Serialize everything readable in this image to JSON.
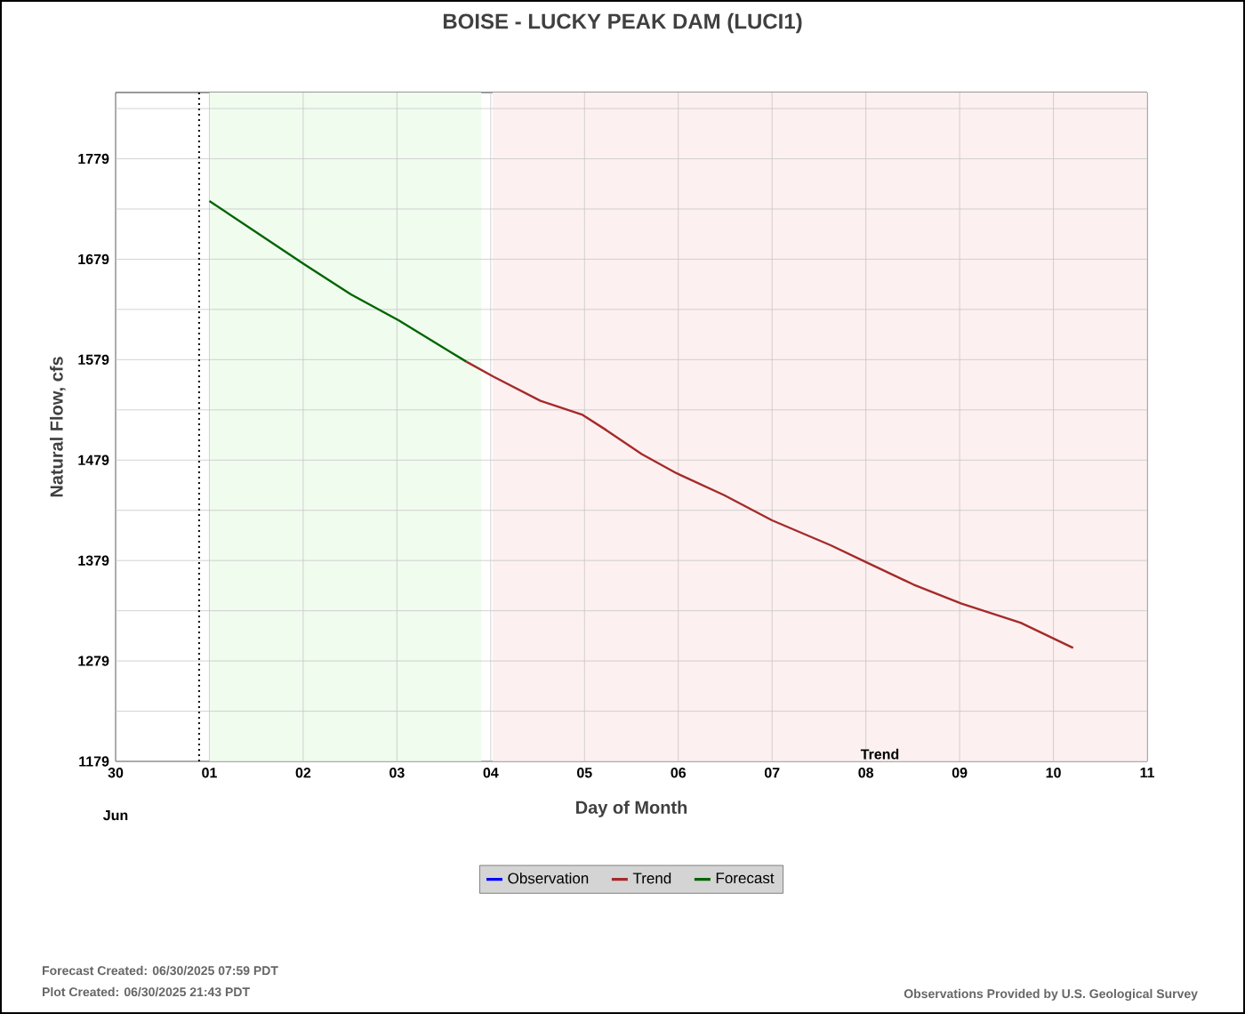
{
  "chart_data": {
    "type": "line",
    "title": "BOISE - LUCKY PEAK DAM  (LUCI1)",
    "xlabel": "Day of Month",
    "ylabel": "Natural Flow, cfs",
    "xlim": [
      "2025-06-30",
      "2025-07-11"
    ],
    "ylim": [
      1179,
      1845
    ],
    "xticks": [
      {
        "value": "2025-06-30",
        "label": "30"
      },
      {
        "value": "2025-07-01",
        "label": "01"
      },
      {
        "value": "2025-07-02",
        "label": "02"
      },
      {
        "value": "2025-07-03",
        "label": "03"
      },
      {
        "value": "2025-07-04",
        "label": "04"
      },
      {
        "value": "2025-07-05",
        "label": "05"
      },
      {
        "value": "2025-07-06",
        "label": "06"
      },
      {
        "value": "2025-07-07",
        "label": "07"
      },
      {
        "value": "2025-07-08",
        "label": "08"
      },
      {
        "value": "2025-07-09",
        "label": "09"
      },
      {
        "value": "2025-07-10",
        "label": "10"
      },
      {
        "value": "2025-07-11",
        "label": "11"
      }
    ],
    "yticks": [
      1179,
      {
        "value": 1229,
        "label": null
      },
      1279,
      {
        "value": 1329,
        "label": null
      },
      1379,
      {
        "value": 1429,
        "label": null
      },
      1479,
      {
        "value": 1529,
        "label": null
      },
      1579,
      {
        "value": 1629,
        "label": null
      },
      1679,
      {
        "value": 1729,
        "label": null
      },
      1779,
      {
        "value": 1829,
        "label": null
      }
    ],
    "grid": true,
    "legend": "bottom",
    "marker": "none",
    "line_style": "solid",
    "series": [
      {
        "name": "Observation",
        "color": "#0000ff"
      },
      {
        "name": "Trend",
        "color": "#a52a2a",
        "x": [
          "2025-07-03T17:46",
          "2025-07-04T00:43",
          "2025-07-04T12:43",
          "2025-07-04T23:31",
          "2025-07-05T05:31",
          "2025-07-05T14:38",
          "2025-07-05T23:31",
          "2025-07-06T11:46",
          "2025-07-07T00:00",
          "2025-07-07T15:07",
          "2025-07-08T00:14",
          "2025-07-08T12:14",
          "2025-07-09T00:29",
          "2025-07-09T15:36",
          "2025-07-10T05:02"
        ],
        "values": [
          1577,
          1562,
          1538,
          1524,
          1509,
          1485,
          1466,
          1444,
          1419,
          1394,
          1377,
          1355,
          1336,
          1317,
          1292
        ]
      },
      {
        "name": "Forecast",
        "color": "#006400",
        "x": [
          "2025-07-01T00:00",
          "2025-07-02T00:14",
          "2025-07-02T12:14",
          "2025-07-03T00:29",
          "2025-07-03T17:46"
        ],
        "values": [
          1737,
          1674,
          1644,
          1618,
          1577
        ]
      }
    ],
    "bands": [
      {
        "axis": "x",
        "from": "2025-07-01T00:00",
        "to": "2025-07-03T21:36",
        "color": "#f0fcee"
      },
      {
        "axis": "x",
        "from": "2025-07-04T00:29",
        "to": "2025-07-11",
        "color": "#fdf0f0"
      }
    ],
    "ref_lines": [
      {
        "axis": "x",
        "value": "2025-06-30T21:22",
        "color": "#000000",
        "line_style": "dotted"
      }
    ],
    "annotations": [
      {
        "text": "Trend",
        "x": "2025-07-08T03:36",
        "y": 1179
      },
      "Jun",
      "Forecast Created: 06/30/2025 07:59 PDT",
      "Plot Created: 06/30/2025 21:43 PDT",
      "Observations Provided by U.S. Geological Survey"
    ]
  }
}
